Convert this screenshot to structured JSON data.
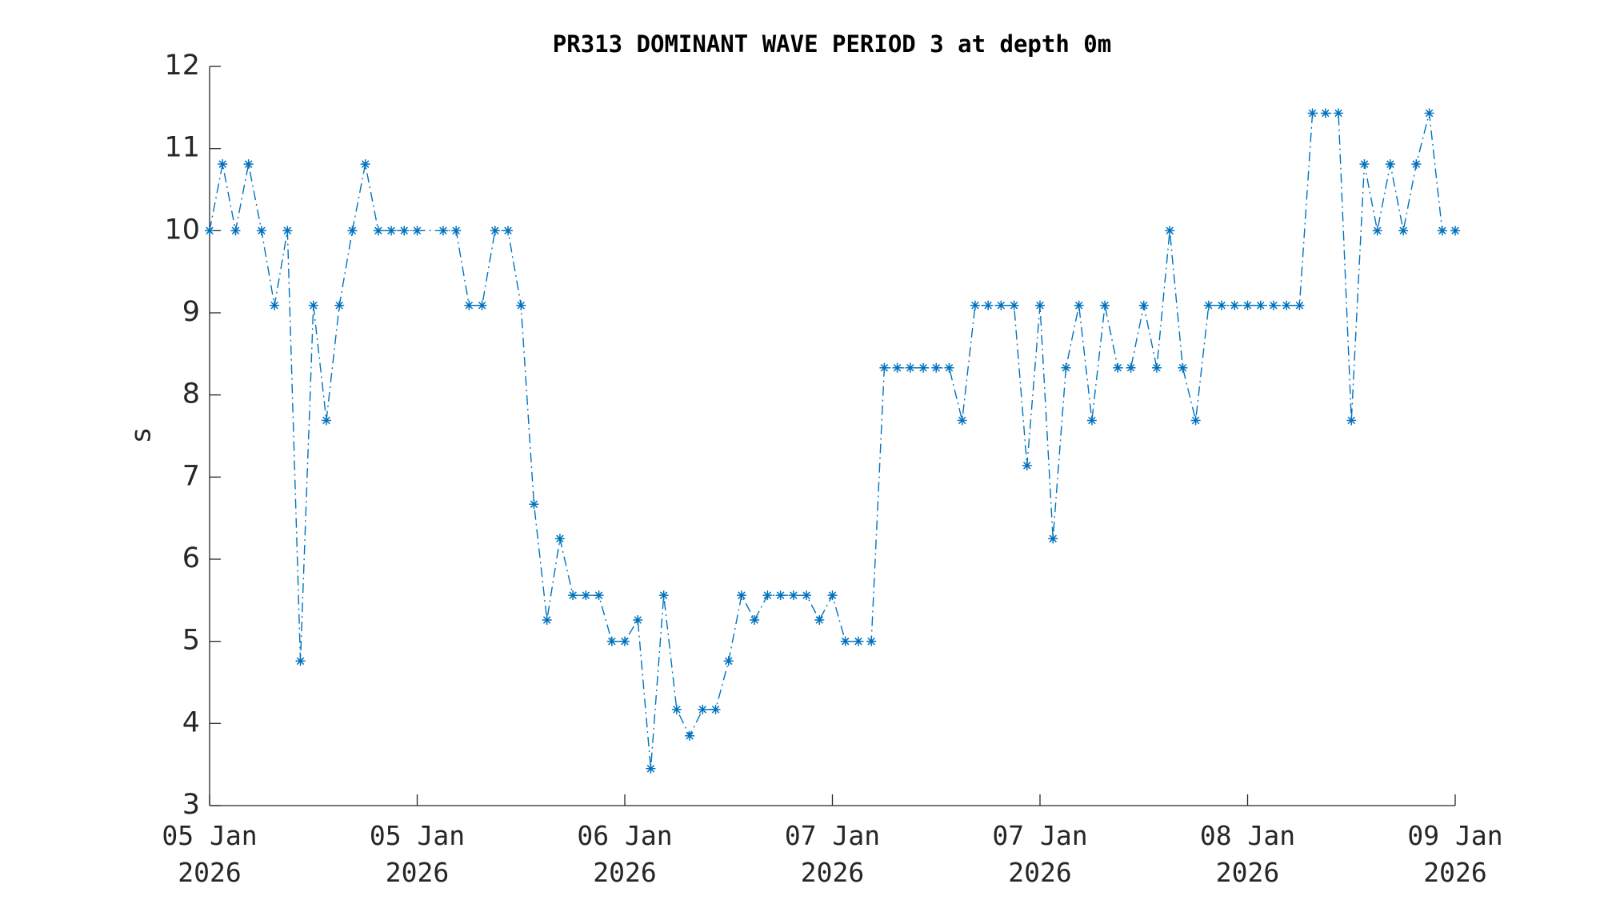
{
  "chart_data": {
    "type": "line",
    "title": "PR313 DOMINANT WAVE PERIOD 3 at depth 0m",
    "ylabel": "s",
    "color": "#0072bd",
    "marker": "asterisk",
    "line_style": "dashdot",
    "x": [
      0,
      1,
      2,
      3,
      4,
      5,
      6,
      7,
      8,
      9,
      10,
      11,
      12,
      13,
      14,
      15,
      16,
      18,
      19,
      20,
      21,
      22,
      23,
      24,
      25,
      26,
      27,
      28,
      29,
      30,
      31,
      32,
      33,
      34,
      35,
      36,
      37,
      38,
      39,
      40,
      41,
      42,
      43,
      44,
      45,
      46,
      47,
      48,
      49,
      50,
      51,
      52,
      53,
      54,
      55,
      56,
      57,
      58,
      59,
      60,
      61,
      62,
      63,
      64,
      65,
      66,
      67,
      68,
      69,
      70,
      71,
      72,
      73,
      74,
      75,
      76,
      77,
      78,
      79,
      80,
      81,
      82,
      83,
      84,
      85,
      86,
      87,
      88,
      89,
      90,
      91,
      92,
      93,
      94,
      95,
      96
    ],
    "values": [
      10,
      10.81,
      10,
      10.81,
      10,
      9.09,
      10,
      4.76,
      9.09,
      7.69,
      9.09,
      10,
      10.81,
      10,
      10,
      10,
      10,
      10,
      10,
      9.09,
      9.09,
      10,
      10,
      9.09,
      6.67,
      5.26,
      6.25,
      5.56,
      5.56,
      5.56,
      5,
      5,
      5.26,
      3.45,
      5.56,
      4.17,
      3.85,
      4.17,
      4.17,
      4.76,
      5.56,
      5.26,
      5.56,
      5.56,
      5.56,
      5.56,
      5.26,
      5.56,
      5,
      5,
      5,
      8.33,
      8.33,
      8.33,
      8.33,
      8.33,
      8.33,
      7.69,
      9.09,
      9.09,
      9.09,
      9.09,
      7.14,
      9.09,
      6.25,
      8.33,
      9.09,
      7.69,
      9.09,
      8.33,
      8.33,
      9.09,
      8.33,
      10,
      8.33,
      7.69,
      9.09,
      9.09,
      9.09,
      9.09,
      9.09,
      9.09,
      9.09,
      9.09,
      11.43,
      11.43,
      11.43,
      7.69,
      10.81,
      10,
      10.81,
      10,
      10.81,
      11.43,
      10,
      10
    ],
    "xlim": [
      0,
      96
    ],
    "xticks": [
      {
        "value": 0,
        "label": "05 Jan\n2026"
      },
      {
        "value": 16,
        "label": "05 Jan\n2026"
      },
      {
        "value": 32,
        "label": "06 Jan\n2026"
      },
      {
        "value": 48,
        "label": "07 Jan\n2026"
      },
      {
        "value": 64,
        "label": "07 Jan\n2026"
      },
      {
        "value": 80,
        "label": "08 Jan\n2026"
      },
      {
        "value": 96,
        "label": "09 Jan\n2026"
      }
    ],
    "ylim": [
      3,
      12
    ],
    "yticks": [
      3,
      4,
      5,
      6,
      7,
      8,
      9,
      10,
      11,
      12
    ],
    "grid": false
  }
}
